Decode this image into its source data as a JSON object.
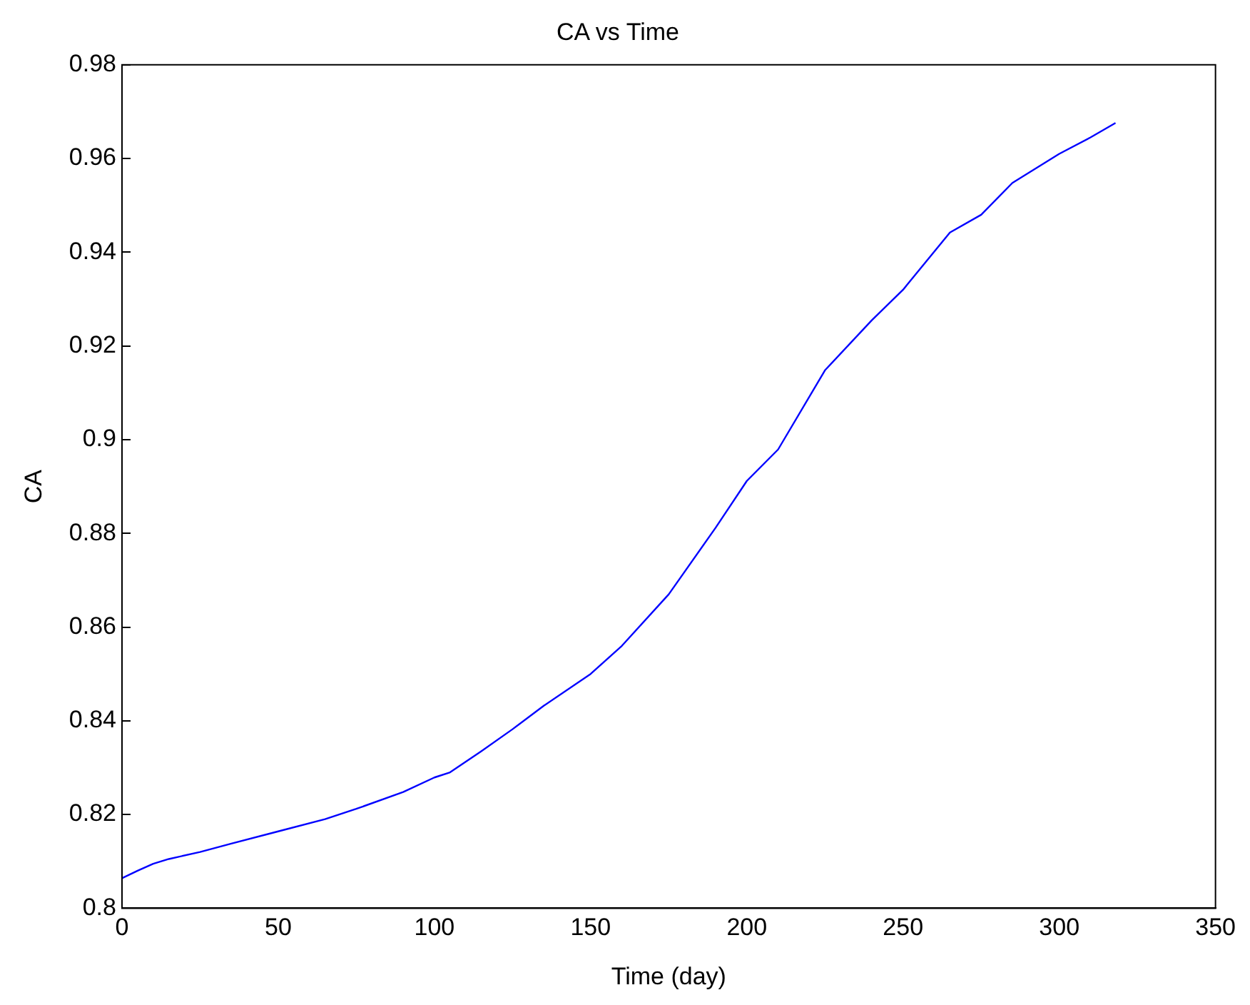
{
  "chart_data": {
    "type": "line",
    "title": "CA vs Time",
    "xlabel": "Time (day)",
    "ylabel": "CA",
    "series": [
      {
        "color": "#0000ff",
        "x": [
          0,
          5,
          10,
          15,
          25,
          35,
          50,
          65,
          75,
          90,
          100,
          105,
          115,
          125,
          135,
          150,
          160,
          175,
          190,
          200,
          210,
          225,
          240,
          250,
          265,
          275,
          285,
          300,
          310,
          318
        ],
        "values": [
          0.8064,
          0.808,
          0.8095,
          0.8105,
          0.812,
          0.8138,
          0.8164,
          0.819,
          0.8212,
          0.8248,
          0.8279,
          0.829,
          0.8335,
          0.8382,
          0.8432,
          0.85,
          0.856,
          0.867,
          0.8812,
          0.8912,
          0.8979,
          0.9148,
          0.9255,
          0.932,
          0.9442,
          0.948,
          0.9548,
          0.961,
          0.9645,
          0.9676
        ]
      }
    ],
    "xlim": [
      0,
      350
    ],
    "xticks": [
      0,
      50,
      100,
      150,
      200,
      250,
      300,
      350
    ],
    "ylim": [
      0.8,
      0.98
    ],
    "yticks": [
      0.8,
      0.82,
      0.84,
      0.86,
      0.88,
      0.9,
      0.92,
      0.94,
      0.96,
      0.98
    ],
    "grid": false,
    "legend": false,
    "marker": "none",
    "line_style": "solid"
  }
}
